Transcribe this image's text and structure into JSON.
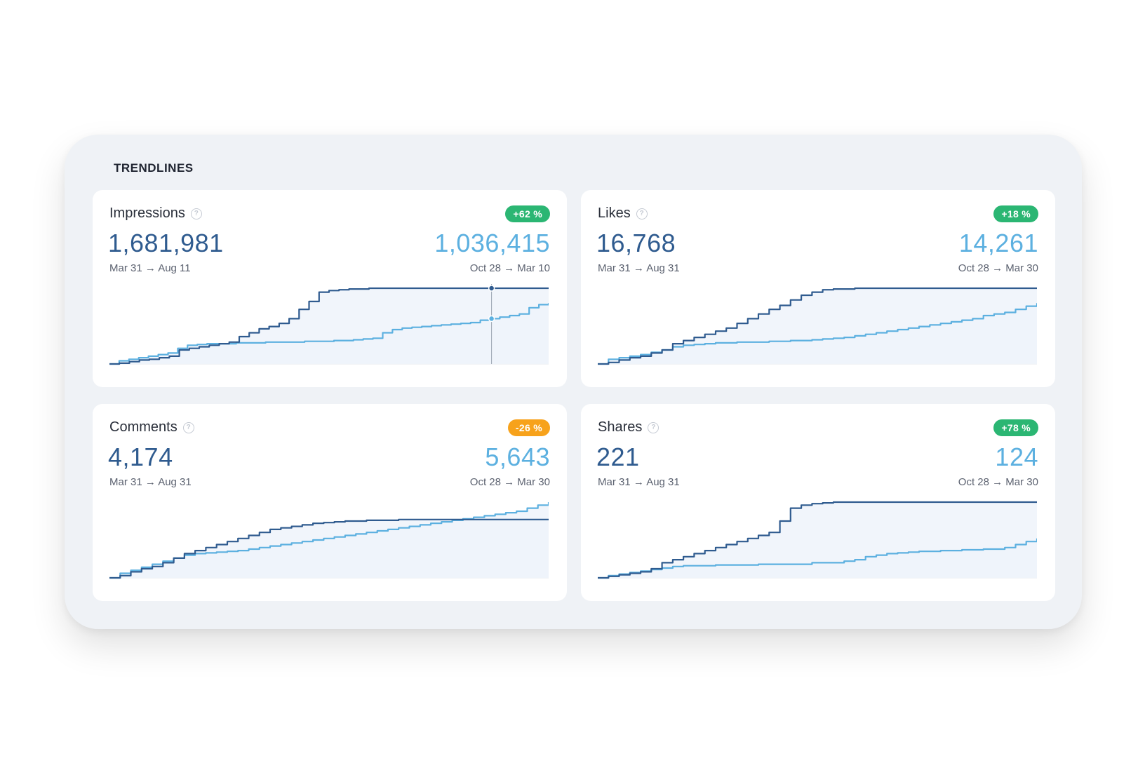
{
  "panel": {
    "title": "TRENDLINES"
  },
  "colors": {
    "current": "#2f5b8f",
    "previous": "#5cb0e0",
    "fill": "#eef3fa",
    "positive": "#2bb673",
    "negative": "#f7a21b"
  },
  "cards": [
    {
      "title": "Impressions",
      "badge": "+62 %",
      "badge_type": "positive",
      "current_value": "1,681,981",
      "previous_value": "1,036,415",
      "current_range": "Mar 31 → Aug 11",
      "previous_range": "Oct 28 → Mar 10",
      "hover_marker": 0.87
    },
    {
      "title": "Likes",
      "badge": "+18 %",
      "badge_type": "positive",
      "current_value": "16,768",
      "previous_value": "14,261",
      "current_range": "Mar 31 → Aug 31",
      "previous_range": "Oct 28 → Mar 30"
    },
    {
      "title": "Comments",
      "badge": "-26 %",
      "badge_type": "negative",
      "current_value": "4,174",
      "previous_value": "5,643",
      "current_range": "Mar 31 → Aug 31",
      "previous_range": "Oct 28 → Mar 30"
    },
    {
      "title": "Shares",
      "badge": "+78 %",
      "badge_type": "positive",
      "current_value": "221",
      "previous_value": "124",
      "current_range": "Mar 31 → Aug 31",
      "previous_range": "Oct 28 → Mar 30"
    }
  ],
  "chart_data": [
    {
      "type": "line",
      "series": [
        {
          "values": [
            0,
            1,
            3,
            5,
            6,
            8,
            10,
            18,
            20,
            22,
            24,
            26,
            28,
            35,
            40,
            45,
            48,
            52,
            58,
            70,
            80,
            92,
            94,
            95,
            96,
            96,
            97,
            97,
            97,
            97,
            97,
            97,
            97,
            97,
            97,
            97,
            97,
            97,
            97,
            97,
            97,
            97,
            97,
            97,
            97
          ]
        },
        {
          "values": [
            0,
            4,
            6,
            8,
            10,
            12,
            14,
            20,
            24,
            25,
            26,
            26,
            26,
            27,
            27,
            27,
            28,
            28,
            28,
            28,
            29,
            29,
            29,
            30,
            30,
            31,
            32,
            33,
            40,
            44,
            46,
            47,
            48,
            49,
            50,
            51,
            52,
            53,
            56,
            58,
            60,
            62,
            64,
            72,
            76,
            78
          ]
        }
      ]
    },
    {
      "type": "line",
      "series": [
        {
          "values": [
            0,
            2,
            5,
            8,
            10,
            14,
            18,
            26,
            30,
            34,
            38,
            42,
            46,
            52,
            58,
            64,
            70,
            75,
            82,
            88,
            92,
            95,
            96,
            96,
            97,
            97,
            97,
            97,
            97,
            97,
            97,
            97,
            97,
            97,
            97,
            97,
            97,
            97,
            97,
            97,
            97,
            97
          ]
        },
        {
          "values": [
            0,
            6,
            8,
            10,
            12,
            15,
            18,
            22,
            24,
            25,
            26,
            27,
            27,
            28,
            28,
            28,
            29,
            29,
            30,
            30,
            31,
            32,
            33,
            34,
            36,
            38,
            40,
            42,
            44,
            46,
            48,
            50,
            52,
            54,
            56,
            58,
            62,
            64,
            66,
            70,
            74,
            78
          ]
        }
      ]
    },
    {
      "type": "line",
      "series": [
        {
          "values": [
            0,
            3,
            8,
            12,
            15,
            20,
            26,
            32,
            36,
            40,
            44,
            48,
            52,
            56,
            60,
            64,
            66,
            68,
            70,
            72,
            73,
            74,
            75,
            75,
            76,
            76,
            76,
            77,
            77,
            77,
            77,
            77,
            77,
            77,
            77,
            77,
            77,
            77,
            77,
            77,
            77,
            77
          ]
        },
        {
          "values": [
            0,
            6,
            10,
            14,
            18,
            22,
            26,
            30,
            32,
            33,
            34,
            35,
            36,
            38,
            40,
            42,
            44,
            46,
            48,
            50,
            52,
            54,
            56,
            58,
            60,
            62,
            64,
            66,
            68,
            70,
            72,
            74,
            76,
            78,
            80,
            82,
            84,
            86,
            88,
            92,
            96,
            100
          ]
        }
      ]
    },
    {
      "type": "line",
      "series": [
        {
          "values": [
            0,
            2,
            4,
            6,
            8,
            12,
            20,
            24,
            28,
            32,
            36,
            40,
            44,
            48,
            52,
            56,
            60,
            75,
            92,
            96,
            98,
            99,
            100,
            100,
            100,
            100,
            100,
            100,
            100,
            100,
            100,
            100,
            100,
            100,
            100,
            100,
            100,
            100,
            100,
            100,
            100,
            100
          ]
        },
        {
          "values": [
            0,
            3,
            5,
            7,
            9,
            11,
            13,
            15,
            16,
            16,
            16,
            17,
            17,
            17,
            17,
            18,
            18,
            18,
            18,
            18,
            20,
            20,
            20,
            22,
            24,
            28,
            30,
            32,
            33,
            34,
            35,
            35,
            36,
            36,
            37,
            37,
            38,
            38,
            40,
            44,
            48,
            52
          ]
        }
      ]
    }
  ]
}
